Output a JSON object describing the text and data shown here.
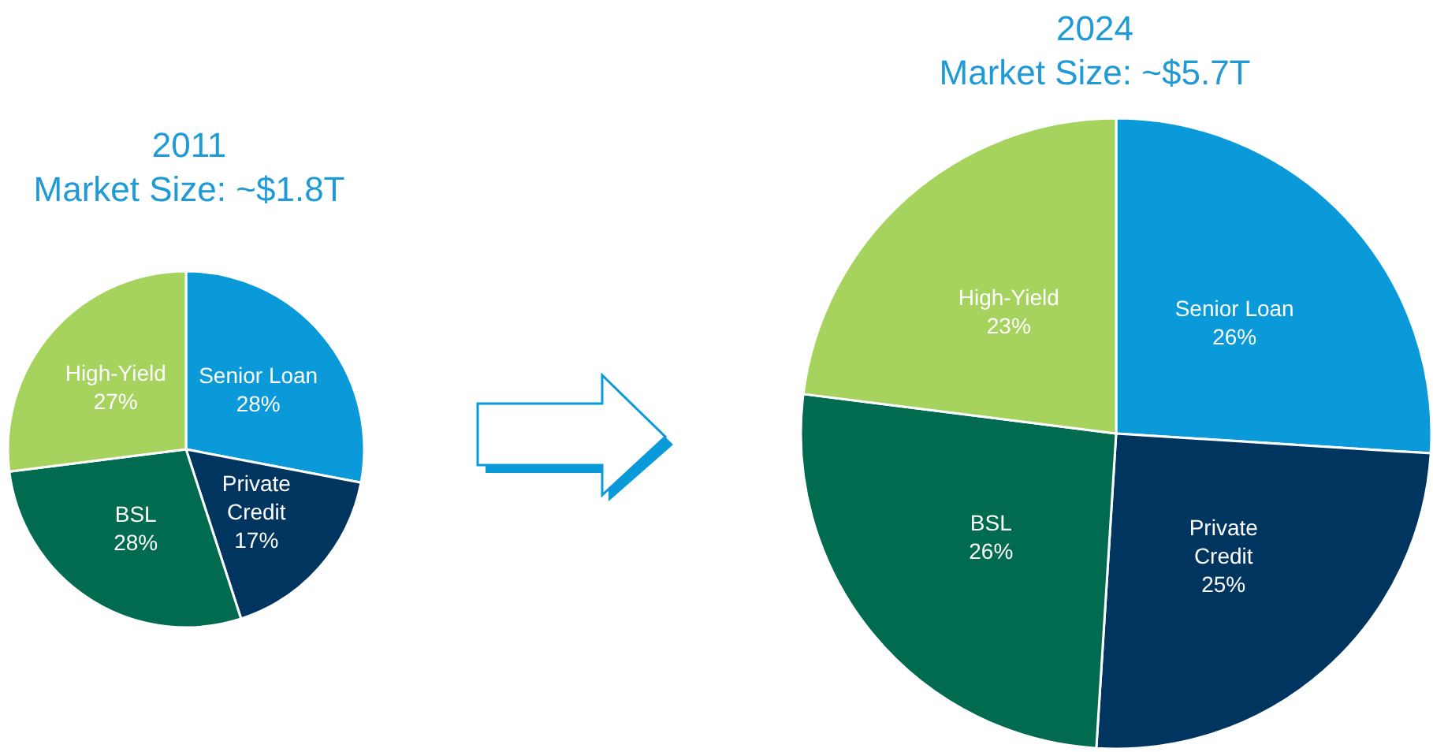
{
  "chart_data": [
    {
      "type": "pie",
      "title": "2011",
      "subtitle": "Market Size: ~$1.8T",
      "categories": [
        "Senior Loan",
        "Private\nCredit",
        "BSL",
        "High-Yield"
      ],
      "values": [
        28,
        17,
        28,
        27
      ],
      "value_labels": [
        "28%",
        "17%",
        "28%",
        "27%"
      ],
      "colors": [
        "#0a9ad9",
        "#003560",
        "#006b4f",
        "#a6d25e"
      ],
      "legend": false
    },
    {
      "type": "pie",
      "title": "2024",
      "subtitle": "Market Size: ~$5.7T",
      "categories": [
        "Senior Loan",
        "Private\nCredit",
        "BSL",
        "High-Yield"
      ],
      "values": [
        26,
        25,
        26,
        23
      ],
      "value_labels": [
        "26%",
        "25%",
        "26%",
        "23%"
      ],
      "colors": [
        "#0a9ad9",
        "#003560",
        "#006b4f",
        "#a6d25e"
      ],
      "legend": false
    }
  ]
}
